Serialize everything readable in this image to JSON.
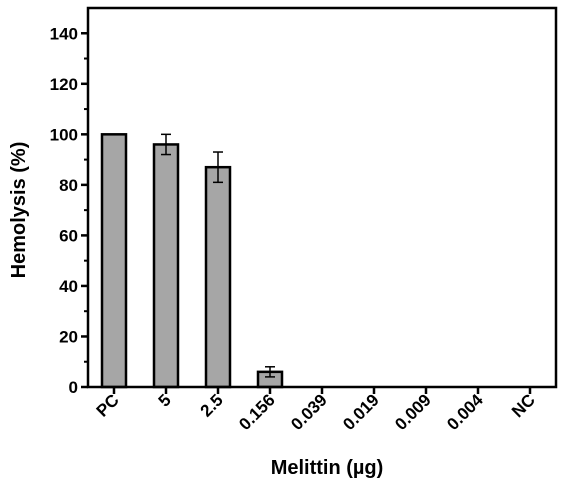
{
  "chart_data": {
    "type": "bar",
    "title": "",
    "xlabel": "Melittin (µg)",
    "ylabel": "Hemolysis (%)",
    "ylim": [
      0,
      150
    ],
    "yticks": [
      0,
      20,
      40,
      60,
      80,
      100,
      120,
      140
    ],
    "categories": [
      "PC",
      "5",
      "2.5",
      "0.156",
      "0.039",
      "0.019",
      "0.009",
      "0.004",
      "NC"
    ],
    "values": [
      100,
      96,
      87,
      6,
      0,
      0,
      0,
      0,
      0
    ],
    "errors": [
      0,
      4,
      6,
      2,
      0,
      0,
      0,
      0,
      0
    ],
    "bar_color": "#a6a6a6",
    "edge_color": "#000000",
    "grid": false,
    "legend": "none"
  }
}
